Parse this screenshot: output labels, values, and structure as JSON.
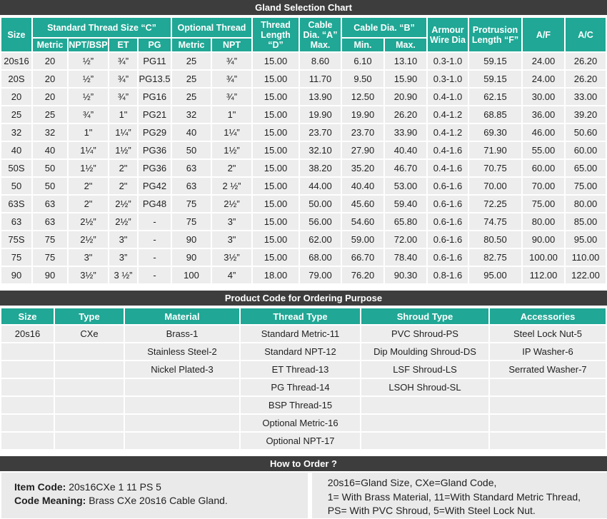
{
  "colors": {
    "accent_teal": "#20a795",
    "bar_dark": "#3d3d3d",
    "cell_gray": "#ededed",
    "panel_gray": "#eaeaea"
  },
  "gland_chart": {
    "title": "Gland Selection Chart",
    "header": {
      "size": "Size",
      "standard_thread": "Standard Thread Size “C”",
      "optional_thread": "Optional Thread",
      "thread_length": "Thread\nLength\n“D”",
      "cable_a": "Cable\nDia. “A”\nMax.",
      "cable_b": "Cable Dia. “B”",
      "armour": "Armour\nWire Dia",
      "protrusion": "Protrusion\nLength “F”",
      "af": "A/F",
      "ac": "A/C",
      "sub": [
        "Metric",
        "NPT/BSP",
        "ET",
        "PG",
        "Metric",
        "NPT",
        "Min.",
        "Max."
      ]
    },
    "rows": [
      [
        "20s16",
        "20",
        "½”",
        "¾”",
        "PG11",
        "25",
        "¾”",
        "15.00",
        "8.60",
        "6.10",
        "13.10",
        "0.3-1.0",
        "59.15",
        "24.00",
        "26.20"
      ],
      [
        "20S",
        "20",
        "½”",
        "¾”",
        "PG13.5",
        "25",
        "¾”",
        "15.00",
        "11.70",
        "9.50",
        "15.90",
        "0.3-1.0",
        "59.15",
        "24.00",
        "26.20"
      ],
      [
        "20",
        "20",
        "½”",
        "¾”",
        "PG16",
        "25",
        "¾”",
        "15.00",
        "13.90",
        "12.50",
        "20.90",
        "0.4-1.0",
        "62.15",
        "30.00",
        "33.00"
      ],
      [
        "25",
        "25",
        "¾”",
        "1\"",
        "PG21",
        "32",
        "1\"",
        "15.00",
        "19.90",
        "19.90",
        "26.20",
        "0.4-1.2",
        "68.85",
        "36.00",
        "39.20"
      ],
      [
        "32",
        "32",
        "1\"",
        "1¼”",
        "PG29",
        "40",
        "1¼”",
        "15.00",
        "23.70",
        "23.70",
        "33.90",
        "0.4-1.2",
        "69.30",
        "46.00",
        "50.60"
      ],
      [
        "40",
        "40",
        "1¼”",
        "1½”",
        "PG36",
        "50",
        "1½”",
        "15.00",
        "32.10",
        "27.90",
        "40.40",
        "0.4-1.6",
        "71.90",
        "55.00",
        "60.00"
      ],
      [
        "50S",
        "50",
        "1½”",
        "2\"",
        "PG36",
        "63",
        "2\"",
        "15.00",
        "38.20",
        "35.20",
        "46.70",
        "0.4-1.6",
        "70.75",
        "60.00",
        "65.00"
      ],
      [
        "50",
        "50",
        "2\"",
        "2\"",
        "PG42",
        "63",
        "2 ½”",
        "15.00",
        "44.00",
        "40.40",
        "53.00",
        "0.6-1.6",
        "70.00",
        "70.00",
        "75.00"
      ],
      [
        "63S",
        "63",
        "2\"",
        "2½”",
        "PG48",
        "75",
        "2½”",
        "15.00",
        "50.00",
        "45.60",
        "59.40",
        "0.6-1.6",
        "72.25",
        "75.00",
        "80.00"
      ],
      [
        "63",
        "63",
        "2½”",
        "2½”",
        "-",
        "75",
        "3”",
        "15.00",
        "56.00",
        "54.60",
        "65.80",
        "0.6-1.6",
        "74.75",
        "80.00",
        "85.00"
      ],
      [
        "75S",
        "75",
        "2½”",
        "3\"",
        "-",
        "90",
        "3\"",
        "15.00",
        "62.00",
        "59.00",
        "72.00",
        "0.6-1.6",
        "80.50",
        "90.00",
        "95.00"
      ],
      [
        "75",
        "75",
        "3\"",
        "3”",
        "-",
        "90",
        "3½”",
        "15.00",
        "68.00",
        "66.70",
        "78.40",
        "0.6-1.6",
        "82.75",
        "100.00",
        "110.00"
      ],
      [
        "90",
        "90",
        "3½”",
        "3 ½”",
        "-",
        "100",
        "4”",
        "18.00",
        "79.00",
        "76.20",
        "90.30",
        "0.8-1.6",
        "95.00",
        "112.00",
        "122.00"
      ]
    ]
  },
  "product_code": {
    "title": "Product Code for Ordering Purpose",
    "headers": [
      "Size",
      "Type",
      "Material",
      "Thread Type",
      "Shroud Type",
      "Accessories"
    ],
    "rows": [
      [
        "20s16",
        "CXe",
        "Brass-1",
        "Standard Metric-11",
        "PVC Shroud-PS",
        "Steel Lock Nut-5"
      ],
      [
        "",
        "",
        "Stainless Steel-2",
        "Standard NPT-12",
        "Dip Moulding Shroud-DS",
        "IP Washer-6"
      ],
      [
        "",
        "",
        "Nickel Plated-3",
        "ET Thread-13",
        "LSF Shroud-LS",
        "Serrated Washer-7"
      ],
      [
        "",
        "",
        "",
        "PG Thread-14",
        "LSOH Shroud-SL",
        ""
      ],
      [
        "",
        "",
        "",
        "BSP Thread-15",
        "",
        ""
      ],
      [
        "",
        "",
        "",
        "Optional Metric-16",
        "",
        ""
      ],
      [
        "",
        "",
        "",
        "Optional NPT-17",
        "",
        ""
      ]
    ]
  },
  "how_to_order": {
    "title": "How to Order ?",
    "item_code_label": "Item Code:",
    "item_code_value": "20s16CXe 1 11 PS 5",
    "code_meaning_label": "Code Meaning:",
    "code_meaning_value": "Brass CXe 20s16 Cable Gland.",
    "right_lines": [
      "20s16=Gland Size, CXe=Gland Code,",
      "1= With Brass Material, 11=With Standard Metric Thread,",
      "PS= With PVC Shroud, 5=With Steel Lock Nut."
    ]
  }
}
